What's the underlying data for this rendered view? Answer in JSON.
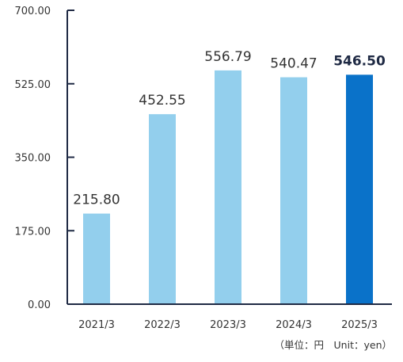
{
  "chart_data": {
    "type": "bar",
    "categories": [
      "2021/3",
      "2022/3",
      "2023/3",
      "2024/3",
      "2025/3"
    ],
    "values": [
      215.8,
      452.55,
      556.79,
      540.47,
      546.5
    ],
    "value_labels": [
      "215.80",
      "452.55",
      "556.79",
      "540.47",
      "546.50"
    ],
    "highlight_index": 4,
    "yticks": [
      "0.00",
      "175.00",
      "350.00",
      "525.00",
      "700.00"
    ],
    "ylim": [
      0,
      700
    ],
    "title": "",
    "xlabel": "",
    "ylabel": "",
    "unit": "（単位：円　Unit：yen）",
    "grid": false,
    "colors": {
      "bar": "#93cfed",
      "highlight": "#0a72c9",
      "axis": "#1f2a44",
      "text": "#333333"
    }
  }
}
